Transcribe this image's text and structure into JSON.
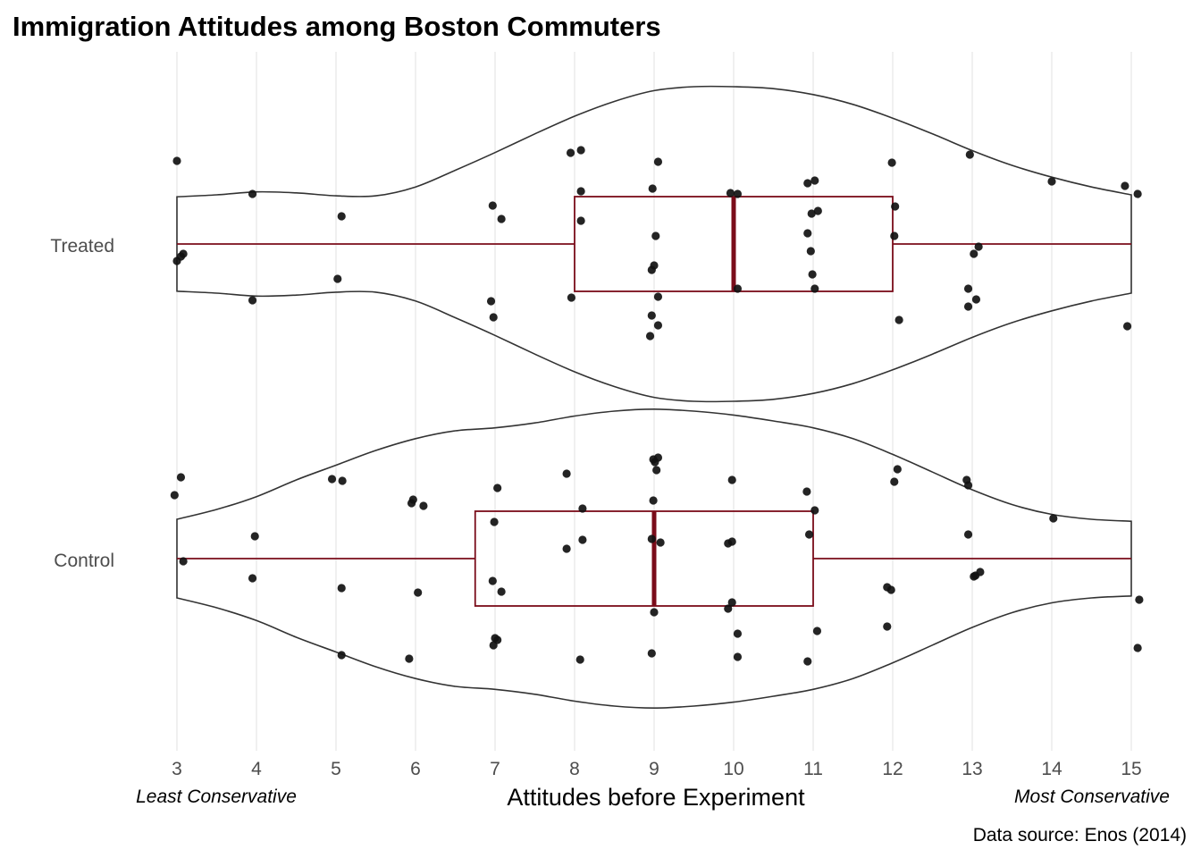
{
  "chart_data": {
    "type": "violin",
    "title": "Immigration Attitudes among Boston Commuters",
    "xlabel": "Attitudes before Experiment",
    "ylabel": "",
    "xlim": [
      3,
      15
    ],
    "x_ticks": [
      3,
      4,
      5,
      6,
      7,
      8,
      9,
      10,
      11,
      12,
      13,
      14,
      15
    ],
    "x_low_note": "Least Conservative",
    "x_high_note": "Most Conservative",
    "caption": "Data source: Enos (2014)",
    "grid": "vertical major gridlines",
    "categories": [
      "Control",
      "Treated"
    ],
    "colors": {
      "box": "#7a0c1a",
      "violin": "#333333",
      "points": "#111111",
      "grid": "#e5e5e5"
    },
    "groups": [
      {
        "name": "Treated",
        "box": {
          "min": 3,
          "q1": 8,
          "median": 10,
          "q3": 12,
          "max": 15
        },
        "density": [
          [
            3,
            0.48
          ],
          [
            3.5,
            0.5
          ],
          [
            4,
            0.53
          ],
          [
            4.5,
            0.52
          ],
          [
            5,
            0.49
          ],
          [
            5.5,
            0.49
          ],
          [
            6,
            0.58
          ],
          [
            6.5,
            0.75
          ],
          [
            7,
            0.93
          ],
          [
            7.5,
            1.12
          ],
          [
            8,
            1.3
          ],
          [
            8.5,
            1.45
          ],
          [
            9,
            1.56
          ],
          [
            9.5,
            1.6
          ],
          [
            10,
            1.6
          ],
          [
            10.5,
            1.58
          ],
          [
            11,
            1.52
          ],
          [
            11.5,
            1.42
          ],
          [
            12,
            1.28
          ],
          [
            12.5,
            1.12
          ],
          [
            13,
            0.95
          ],
          [
            13.5,
            0.8
          ],
          [
            14,
            0.68
          ],
          [
            14.5,
            0.58
          ],
          [
            15,
            0.5
          ]
        ],
        "points": [
          [
            3.0,
            0.19
          ],
          [
            3.05,
            0.14
          ],
          [
            3.08,
            0.11
          ],
          [
            3.0,
            -0.93
          ],
          [
            3.95,
            0.63
          ],
          [
            3.95,
            -0.56
          ],
          [
            5.02,
            0.39
          ],
          [
            5.07,
            -0.31
          ],
          [
            6.95,
            0.64
          ],
          [
            6.98,
            0.82
          ],
          [
            6.97,
            -0.43
          ],
          [
            7.08,
            -0.28
          ],
          [
            7.96,
            0.6
          ],
          [
            8.08,
            -0.26
          ],
          [
            8.08,
            -0.59
          ],
          [
            7.95,
            -1.02
          ],
          [
            8.08,
            -1.05
          ],
          [
            8.95,
            1.03
          ],
          [
            9.05,
            0.91
          ],
          [
            8.97,
            0.8
          ],
          [
            9.05,
            0.59
          ],
          [
            8.97,
            0.29
          ],
          [
            9.0,
            0.24
          ],
          [
            9.02,
            -0.09
          ],
          [
            8.98,
            -0.62
          ],
          [
            9.05,
            -0.92
          ],
          [
            9.96,
            -0.57
          ],
          [
            10.05,
            -0.56
          ],
          [
            10.05,
            0.5
          ],
          [
            11.02,
            0.5
          ],
          [
            10.99,
            0.34
          ],
          [
            10.97,
            0.08
          ],
          [
            10.93,
            -0.12
          ],
          [
            10.98,
            -0.34
          ],
          [
            11.06,
            -0.37
          ],
          [
            10.93,
            -0.68
          ],
          [
            11.02,
            -0.71
          ],
          [
            12.02,
            -0.09
          ],
          [
            12.03,
            -0.42
          ],
          [
            11.99,
            -0.91
          ],
          [
            12.08,
            0.85
          ],
          [
            12.95,
            0.7
          ],
          [
            13.05,
            0.62
          ],
          [
            12.95,
            0.5
          ],
          [
            13.02,
            0.11
          ],
          [
            13.08,
            0.03
          ],
          [
            12.97,
            -1.0
          ],
          [
            14.0,
            -0.7
          ],
          [
            14.95,
            0.92
          ],
          [
            15.08,
            -0.56
          ],
          [
            14.92,
            -0.65
          ]
        ]
      },
      {
        "name": "Control",
        "box": {
          "min": 3,
          "q1": 6.75,
          "median": 9,
          "q3": 11,
          "max": 15
        },
        "density": [
          [
            3,
            0.4
          ],
          [
            3.5,
            0.5
          ],
          [
            4,
            0.63
          ],
          [
            4.5,
            0.8
          ],
          [
            5,
            0.95
          ],
          [
            5.5,
            1.1
          ],
          [
            6,
            1.22
          ],
          [
            6.5,
            1.3
          ],
          [
            7,
            1.33
          ],
          [
            7.5,
            1.38
          ],
          [
            8,
            1.45
          ],
          [
            8.5,
            1.5
          ],
          [
            9,
            1.52
          ],
          [
            9.5,
            1.5
          ],
          [
            10,
            1.46
          ],
          [
            10.5,
            1.4
          ],
          [
            11,
            1.33
          ],
          [
            11.5,
            1.22
          ],
          [
            12,
            1.06
          ],
          [
            12.5,
            0.88
          ],
          [
            13,
            0.7
          ],
          [
            13.5,
            0.55
          ],
          [
            14,
            0.45
          ],
          [
            14.5,
            0.4
          ],
          [
            15,
            0.38
          ]
        ],
        "points": [
          [
            3.08,
            0.03
          ],
          [
            2.97,
            -0.71
          ],
          [
            3.05,
            -0.91
          ],
          [
            3.95,
            0.22
          ],
          [
            3.98,
            -0.25
          ],
          [
            5.07,
            1.08
          ],
          [
            5.07,
            0.33
          ],
          [
            4.95,
            -0.89
          ],
          [
            5.08,
            -0.87
          ],
          [
            5.92,
            1.12
          ],
          [
            6.03,
            0.38
          ],
          [
            5.95,
            -0.62
          ],
          [
            5.97,
            -0.66
          ],
          [
            6.1,
            -0.59
          ],
          [
            6.98,
            0.97
          ],
          [
            7.0,
            0.89
          ],
          [
            7.03,
            0.91
          ],
          [
            6.97,
            0.25
          ],
          [
            7.08,
            0.37
          ],
          [
            6.99,
            -0.41
          ],
          [
            7.03,
            -0.79
          ],
          [
            8.07,
            1.13
          ],
          [
            7.9,
            -0.11
          ],
          [
            8.1,
            -0.21
          ],
          [
            8.1,
            -0.56
          ],
          [
            7.9,
            -0.95
          ],
          [
            8.97,
            1.06
          ],
          [
            9.0,
            0.6
          ],
          [
            8.97,
            -0.22
          ],
          [
            9.08,
            -0.18
          ],
          [
            8.99,
            -0.65
          ],
          [
            9.03,
            -0.99
          ],
          [
            9.01,
            -1.08
          ],
          [
            9.05,
            -1.13
          ],
          [
            8.99,
            -1.11
          ],
          [
            10.05,
            1.1
          ],
          [
            10.05,
            0.84
          ],
          [
            9.93,
            0.56
          ],
          [
            9.98,
            0.49
          ],
          [
            9.93,
            -0.17
          ],
          [
            9.98,
            -0.19
          ],
          [
            9.98,
            -0.88
          ],
          [
            10.93,
            1.15
          ],
          [
            11.05,
            0.81
          ],
          [
            11.02,
            -0.54
          ],
          [
            10.95,
            -0.27
          ],
          [
            10.92,
            -0.75
          ],
          [
            11.93,
            0.76
          ],
          [
            11.98,
            0.35
          ],
          [
            11.93,
            0.32
          ],
          [
            12.02,
            -0.86
          ],
          [
            12.06,
            -1.0
          ],
          [
            13.04,
            0.19
          ],
          [
            13.02,
            0.2
          ],
          [
            13.1,
            0.15
          ],
          [
            12.95,
            -0.27
          ],
          [
            12.95,
            -0.82
          ],
          [
            12.93,
            -0.88
          ],
          [
            14.02,
            -0.45
          ],
          [
            15.08,
            1.0
          ],
          [
            15.1,
            0.46
          ]
        ]
      }
    ]
  }
}
